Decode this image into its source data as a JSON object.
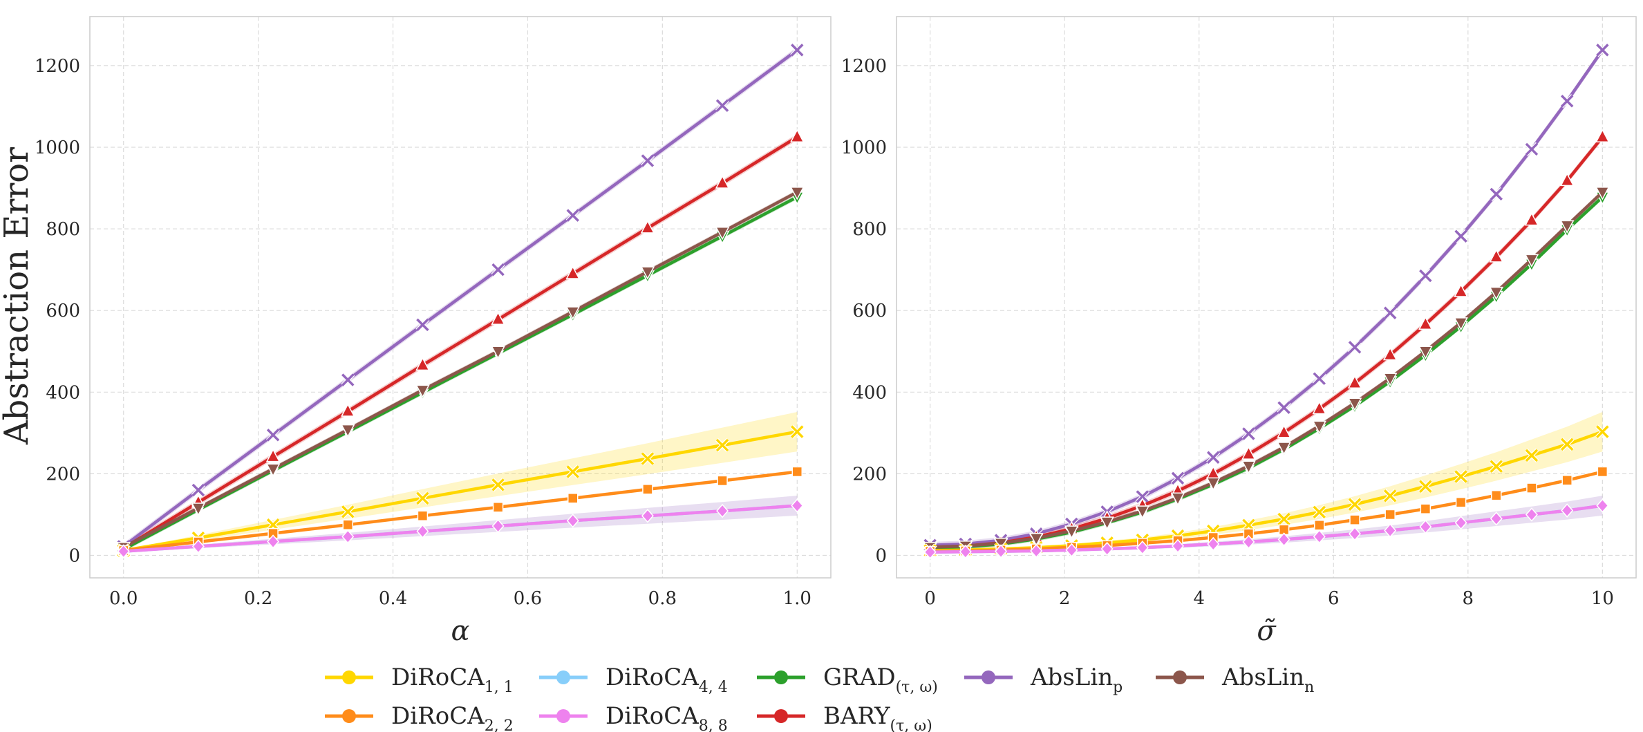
{
  "chart_data": {
    "type": "line",
    "ylabel": "Abstraction Error",
    "legend_position": "bottom-center",
    "colors": {
      "DiRoCA11": "#FFD700",
      "DiRoCA22": "#FF8C1A",
      "DiRoCA44": "#87CEFA",
      "DiRoCA88": "#EE82EE",
      "GRAD": "#2CA02C",
      "BARY": "#D62728",
      "AbsLinP": "#9467BD",
      "AbsLinN": "#8C564B"
    },
    "legend": [
      {
        "key": "DiRoCA11",
        "base": "DiRoCA",
        "sub": "1, 1"
      },
      {
        "key": "DiRoCA22",
        "base": "DiRoCA",
        "sub": "2, 2"
      },
      {
        "key": "DiRoCA44",
        "base": "DiRoCA",
        "sub": "4, 4"
      },
      {
        "key": "DiRoCA88",
        "base": "DiRoCA",
        "sub": "8, 8"
      },
      {
        "key": "GRAD",
        "base": "GRAD",
        "sub": "(τ, ω)"
      },
      {
        "key": "BARY",
        "base": "BARY",
        "sub": "(τ, ω)"
      },
      {
        "key": "AbsLinP",
        "base": "AbsLin",
        "sub": "p"
      },
      {
        "key": "AbsLinN",
        "base": "AbsLin",
        "sub": "n"
      }
    ],
    "panels": [
      {
        "xlabel": "α",
        "xlim": [
          -0.05,
          1.05
        ],
        "ylim": [
          -55,
          1320
        ],
        "xticks": [
          0.0,
          0.2,
          0.4,
          0.6,
          0.8,
          1.0
        ],
        "xtick_labels": [
          "0.0",
          "0.2",
          "0.4",
          "0.6",
          "0.8",
          "1.0"
        ],
        "yticks": [
          0,
          200,
          400,
          600,
          800,
          1000,
          1200
        ],
        "x": [
          0.0,
          0.111,
          0.222,
          0.333,
          0.444,
          0.556,
          0.667,
          0.778,
          0.889,
          1.0
        ],
        "series": [
          {
            "key": "AbsLinP",
            "marker": "x",
            "band": 8,
            "values": [
              22,
              160,
              295,
              430,
              565,
              700,
              833,
              967,
              1102,
              1238
            ]
          },
          {
            "key": "BARY",
            "marker": "triangle-up",
            "band": 8,
            "values": [
              18,
              130,
              242,
              353,
              466,
              578,
              690,
              802,
              912,
              1025
            ]
          },
          {
            "key": "GRAD",
            "marker": "triangle-down",
            "band": 6,
            "values": [
              15,
              112,
              208,
              303,
              399,
              495,
              590,
              686,
              782,
              878
            ]
          },
          {
            "key": "AbsLinN",
            "marker": "triangle-down",
            "band": 6,
            "values": [
              20,
              116,
              212,
              308,
              405,
              500,
              597,
              695,
              792,
              890
            ]
          },
          {
            "key": "DiRoCA11",
            "marker": "x",
            "band_frac": 0.16,
            "values": [
              12,
              43,
              75,
              107,
              140,
              173,
              205,
              237,
              270,
              303
            ]
          },
          {
            "key": "DiRoCA22",
            "marker": "square",
            "band": 4,
            "values": [
              12,
              33,
              54,
              75,
              97,
              118,
              140,
              162,
              183,
              205
            ]
          },
          {
            "key": "DiRoCA44",
            "marker": "diamond",
            "band": 0,
            "values": [
              10,
              22,
              34,
              46,
              59,
              72,
              85,
              97,
              109,
              122
            ]
          },
          {
            "key": "DiRoCA88",
            "marker": "diamond",
            "band_frac": 0.2,
            "values": [
              10,
              22,
              34,
              46,
              59,
              72,
              85,
              97,
              109,
              122
            ]
          }
        ]
      },
      {
        "xlabel": "σ̃",
        "xlim": [
          -0.5,
          10.5
        ],
        "ylim": [
          -55,
          1320
        ],
        "xticks": [
          0,
          2,
          4,
          6,
          8,
          10
        ],
        "xtick_labels": [
          "0",
          "2",
          "4",
          "6",
          "8",
          "10"
        ],
        "yticks": [
          0,
          200,
          400,
          600,
          800,
          1000,
          1200
        ],
        "x": [
          0.0,
          0.526,
          1.053,
          1.579,
          2.105,
          2.632,
          3.158,
          3.684,
          4.211,
          4.737,
          5.263,
          5.789,
          6.316,
          6.842,
          7.368,
          7.895,
          8.421,
          8.947,
          9.474,
          10.0
        ],
        "series": [
          {
            "key": "AbsLinP",
            "marker": "x",
            "band": 8,
            "values": [
              25,
              28,
              37,
              53,
              77,
              107,
              144,
              189,
              240,
              298,
              362,
              433,
              510,
              594,
              685,
              782,
              885,
              995,
              1113,
              1238
            ]
          },
          {
            "key": "BARY",
            "marker": "triangle-up",
            "band": 8,
            "values": [
              20,
              23,
              31,
              45,
              65,
              91,
              122,
              158,
              200,
              248,
              301,
              359,
              422,
              491,
              566,
              646,
              731,
              821,
              918,
              1025
            ]
          },
          {
            "key": "GRAD",
            "marker": "triangle-down",
            "band": 6,
            "values": [
              18,
              21,
              28,
              40,
              57,
              80,
              106,
              138,
              174,
              214,
              260,
              311,
              366,
              426,
              491,
              561,
              635,
              714,
              798,
              878
            ]
          },
          {
            "key": "AbsLinN",
            "marker": "triangle-down",
            "band": 6,
            "values": [
              20,
              23,
              30,
              42,
              60,
              82,
              109,
              141,
              178,
              219,
              265,
              317,
              373,
              434,
              500,
              570,
              645,
              725,
              808,
              890
            ]
          },
          {
            "key": "DiRoCA11",
            "marker": "x",
            "band_frac": 0.16,
            "values": [
              12,
              13,
              16,
              19,
              24,
              31,
              38,
              48,
              60,
              74,
              89,
              106,
              125,
              146,
              169,
              193,
              218,
              245,
              272,
              303
            ]
          },
          {
            "key": "DiRoCA22",
            "marker": "square",
            "band": 4,
            "values": [
              10,
              11,
              13,
              16,
              20,
              24,
              30,
              36,
              44,
              53,
              63,
              74,
              87,
              100,
              114,
              130,
              147,
              165,
              184,
              205
            ]
          },
          {
            "key": "DiRoCA44",
            "marker": "diamond",
            "band": 0,
            "values": [
              8,
              9,
              10,
              11,
              13,
              16,
              19,
              23,
              28,
              33,
              39,
              46,
              53,
              61,
              70,
              80,
              90,
              100,
              110,
              122
            ]
          },
          {
            "key": "DiRoCA88",
            "marker": "diamond",
            "band_frac": 0.2,
            "values": [
              8,
              9,
              10,
              11,
              13,
              16,
              19,
              23,
              28,
              33,
              39,
              46,
              53,
              61,
              70,
              80,
              90,
              100,
              110,
              122
            ]
          }
        ]
      }
    ]
  }
}
